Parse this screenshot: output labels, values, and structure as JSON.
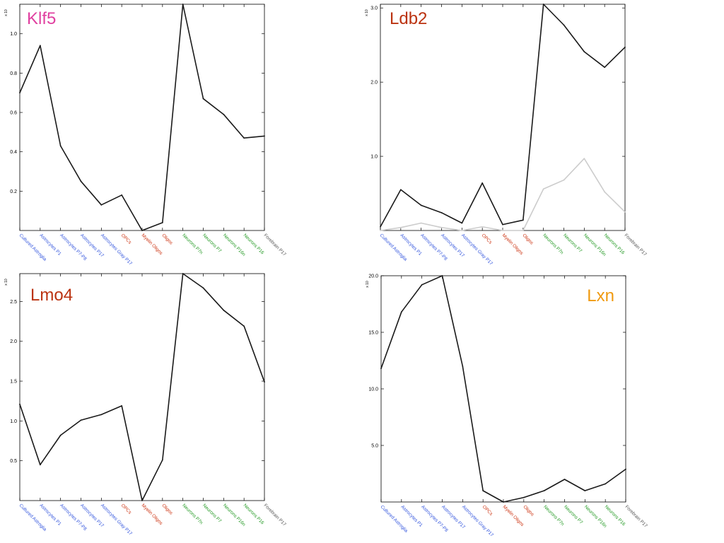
{
  "categories": [
    "Cultured Astroglia",
    "Astrocytes P1",
    "Astrocytes P7-P8",
    "Astrocytes P17",
    "Astrocytes Gray P17",
    "OPCs",
    "Myelin Oligos",
    "Oligos",
    "Neurons P7n",
    "Neurons P7",
    "Neurons P16n",
    "Neurons P16",
    "Forebrain P17"
  ],
  "category_colors": [
    "#3355dd",
    "#3355dd",
    "#3355dd",
    "#3355dd",
    "#3355dd",
    "#cc3311",
    "#cc3311",
    "#cc3311",
    "#229922",
    "#229922",
    "#229922",
    "#229922",
    "#555555"
  ],
  "scale_label": "x 10",
  "chart_data": [
    {
      "type": "line",
      "title": "Klf5",
      "title_color": "#e040a0",
      "ylim": [
        0.0,
        1.15
      ],
      "yticks": [
        0.2,
        0.4,
        0.6,
        0.8,
        1.0
      ],
      "ytick_labels": [
        "0.2",
        "0.4",
        "0.6",
        "0.8",
        "1.0"
      ],
      "series": [
        {
          "color": "#1a1a1a",
          "values": [
            0.7,
            0.94,
            0.43,
            0.25,
            0.13,
            0.18,
            0.0,
            0.04,
            1.15,
            0.67,
            0.59,
            0.47,
            0.48
          ]
        }
      ]
    },
    {
      "type": "line",
      "title": "Ldb2",
      "title_color": "#bb3311",
      "ylim": [
        0.0,
        3.05
      ],
      "yticks": [
        1.0,
        2.0,
        3.0
      ],
      "ytick_labels": [
        "1.0",
        "2.0",
        "3.0"
      ],
      "series": [
        {
          "color": "#1a1a1a",
          "values": [
            0.05,
            0.55,
            0.34,
            0.24,
            0.1,
            0.64,
            0.08,
            0.14,
            3.05,
            2.77,
            2.41,
            2.2,
            2.47
          ]
        },
        {
          "color": "#cccccc",
          "values": [
            0.0,
            0.04,
            0.1,
            0.04,
            0.0,
            0.05,
            0.0,
            0.0,
            0.56,
            0.68,
            0.97,
            0.52,
            0.25
          ]
        }
      ]
    },
    {
      "type": "line",
      "title": "Lmo4",
      "title_color": "#bb3311",
      "ylim": [
        0.0,
        2.85
      ],
      "yticks": [
        0.5,
        1.0,
        1.5,
        2.0,
        2.5
      ],
      "ytick_labels": [
        "0.5",
        "1.0",
        "1.5",
        "2.0",
        "2.5"
      ],
      "series": [
        {
          "color": "#1a1a1a",
          "values": [
            1.21,
            0.45,
            0.82,
            1.01,
            1.08,
            1.19,
            0.0,
            0.51,
            2.85,
            2.67,
            2.39,
            2.19,
            1.49
          ]
        }
      ]
    },
    {
      "type": "line",
      "title": "Lxn",
      "title_color": "#f09a10",
      "ylim": [
        0.0,
        20.0
      ],
      "yticks": [
        5.0,
        10.0,
        15.0,
        20.0
      ],
      "ytick_labels": [
        "5.0",
        "10.0",
        "15.0",
        "20.0"
      ],
      "series": [
        {
          "color": "#1a1a1a",
          "values": [
            11.8,
            16.8,
            19.2,
            20.0,
            12.0,
            1.0,
            0.0,
            0.4,
            1.0,
            2.0,
            1.0,
            1.6,
            2.9
          ]
        }
      ]
    }
  ]
}
